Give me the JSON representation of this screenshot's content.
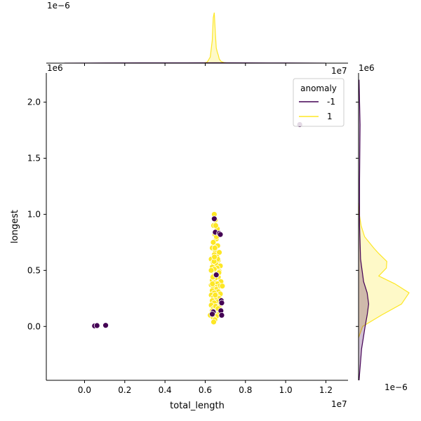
{
  "chart_data": {
    "type": "scatter",
    "xlabel": "total_length",
    "ylabel": "longest",
    "x_offset_label": "1e7",
    "y_offset_label": "1e6",
    "top_density_offset_label": "1e−6",
    "right_density_offset_label": "1e−6",
    "xlim": [
      -1900000,
      13100000
    ],
    "ylim": [
      -480000,
      2260000
    ],
    "x_ticks": [
      0,
      2000000,
      4000000,
      6000000,
      8000000,
      10000000,
      12000000
    ],
    "x_tick_labels": [
      "0.0",
      "0.2",
      "0.4",
      "0.6",
      "0.8",
      "1.0",
      "1.2"
    ],
    "y_ticks": [
      0,
      500000,
      1000000,
      1500000,
      2000000
    ],
    "y_tick_labels": [
      "0.0",
      "0.5",
      "1.0",
      "1.5",
      "2.0"
    ],
    "legend": {
      "title": "anomaly",
      "placement": "top-right",
      "entries": [
        {
          "label": "-1",
          "color": "#440154"
        },
        {
          "label": "1",
          "color": "#fde725"
        }
      ]
    },
    "series": [
      {
        "name": "-1",
        "color": "#440154",
        "points": [
          [
            500000,
            5000
          ],
          [
            620000,
            8000
          ],
          [
            1050000,
            10000
          ],
          [
            10700000,
            1800000
          ],
          [
            6450000,
            960000
          ],
          [
            6500000,
            840000
          ],
          [
            6700000,
            830000
          ],
          [
            6750000,
            820000
          ],
          [
            6550000,
            460000
          ],
          [
            6800000,
            230000
          ],
          [
            6820000,
            210000
          ],
          [
            6780000,
            140000
          ],
          [
            6820000,
            100000
          ],
          [
            6400000,
            130000
          ],
          [
            6350000,
            110000
          ]
        ]
      },
      {
        "name": "1",
        "color": "#fde725",
        "points": [
          [
            6450000,
            1000000
          ],
          [
            6500000,
            950000
          ],
          [
            6420000,
            900000
          ],
          [
            6600000,
            870000
          ],
          [
            6480000,
            820000
          ],
          [
            6550000,
            780000
          ],
          [
            6400000,
            750000
          ],
          [
            6620000,
            720000
          ],
          [
            6350000,
            700000
          ],
          [
            6500000,
            680000
          ],
          [
            6700000,
            660000
          ],
          [
            6450000,
            640000
          ],
          [
            6580000,
            620000
          ],
          [
            6300000,
            600000
          ],
          [
            6650000,
            590000
          ],
          [
            6400000,
            570000
          ],
          [
            6520000,
            560000
          ],
          [
            6750000,
            540000
          ],
          [
            6350000,
            530000
          ],
          [
            6600000,
            520000
          ],
          [
            6450000,
            510000
          ],
          [
            6300000,
            500000
          ],
          [
            6700000,
            490000
          ],
          [
            6550000,
            470000
          ],
          [
            6400000,
            450000
          ],
          [
            6650000,
            440000
          ],
          [
            6500000,
            430000
          ],
          [
            6350000,
            410000
          ],
          [
            6780000,
            400000
          ],
          [
            6450000,
            390000
          ],
          [
            6600000,
            380000
          ],
          [
            6300000,
            370000
          ],
          [
            6720000,
            360000
          ],
          [
            6500000,
            350000
          ],
          [
            6400000,
            340000
          ],
          [
            6850000,
            360000
          ],
          [
            6550000,
            330000
          ],
          [
            6350000,
            320000
          ],
          [
            6650000,
            310000
          ],
          [
            6450000,
            300000
          ],
          [
            6750000,
            290000
          ],
          [
            6300000,
            280000
          ],
          [
            6580000,
            270000
          ],
          [
            6420000,
            260000
          ],
          [
            6700000,
            250000
          ],
          [
            6500000,
            240000
          ],
          [
            6350000,
            230000
          ],
          [
            6620000,
            220000
          ],
          [
            6450000,
            210000
          ],
          [
            6780000,
            200000
          ],
          [
            6300000,
            190000
          ],
          [
            6550000,
            180000
          ],
          [
            6680000,
            170000
          ],
          [
            6400000,
            160000
          ],
          [
            6500000,
            150000
          ],
          [
            6350000,
            140000
          ],
          [
            6600000,
            130000
          ],
          [
            6450000,
            120000
          ],
          [
            6700000,
            110000
          ],
          [
            6250000,
            100000
          ],
          [
            6550000,
            90000
          ],
          [
            6400000,
            80000
          ],
          [
            6480000,
            60000
          ],
          [
            6420000,
            40000
          ],
          [
            6520000,
            180000
          ],
          [
            6380000,
            440000
          ],
          [
            6620000,
            600000
          ],
          [
            6480000,
            700000
          ],
          [
            6560000,
            800000
          ],
          [
            6440000,
            580000
          ],
          [
            6680000,
            480000
          ],
          [
            6360000,
            380000
          ],
          [
            6500000,
            280000
          ],
          [
            6640000,
            160000
          ],
          [
            6460000,
            620000
          ],
          [
            6520000,
            900000
          ]
        ]
      }
    ],
    "top_density": {
      "series": [
        {
          "name": "1",
          "color": "#fde725",
          "x": [
            5900000,
            6100000,
            6250000,
            6350000,
            6400000,
            6450000,
            6500000,
            6550000,
            6600000,
            6650000,
            6700000,
            6800000,
            6950000,
            7200000
          ],
          "density": [
            0,
            0.02,
            0.12,
            0.45,
            0.9,
            1.0,
            0.62,
            0.3,
            0.22,
            0.16,
            0.08,
            0.03,
            0.01,
            0
          ]
        },
        {
          "name": "-1",
          "color": "#440154",
          "x": [
            -1000000,
            1000000,
            3000000,
            5000000,
            6500000,
            8000000,
            10000000,
            12000000
          ],
          "density": [
            0.001,
            0.004,
            0.005,
            0.006,
            0.008,
            0.005,
            0.003,
            0.001
          ]
        }
      ]
    },
    "right_density": {
      "series": [
        {
          "name": "1",
          "color": "#fde725",
          "y": [
            -100000,
            0,
            100000,
            200000,
            300000,
            380000,
            450000,
            520000,
            580000,
            650000,
            700000,
            800000,
            900000,
            1000000,
            1100000
          ],
          "density": [
            0,
            0.08,
            0.45,
            0.85,
            1.0,
            0.72,
            0.4,
            0.55,
            0.56,
            0.4,
            0.3,
            0.12,
            0.05,
            0.015,
            0
          ]
        },
        {
          "name": "-1",
          "color": "#440154",
          "y": [
            -480000,
            -200000,
            0,
            100000,
            200000,
            300000,
            400000,
            600000,
            900000,
            1300000,
            1800000,
            2200000
          ],
          "density": [
            0.01,
            0.06,
            0.13,
            0.17,
            0.2,
            0.17,
            0.1,
            0.04,
            0.02,
            0.02,
            0.03,
            0.01
          ]
        }
      ]
    }
  }
}
